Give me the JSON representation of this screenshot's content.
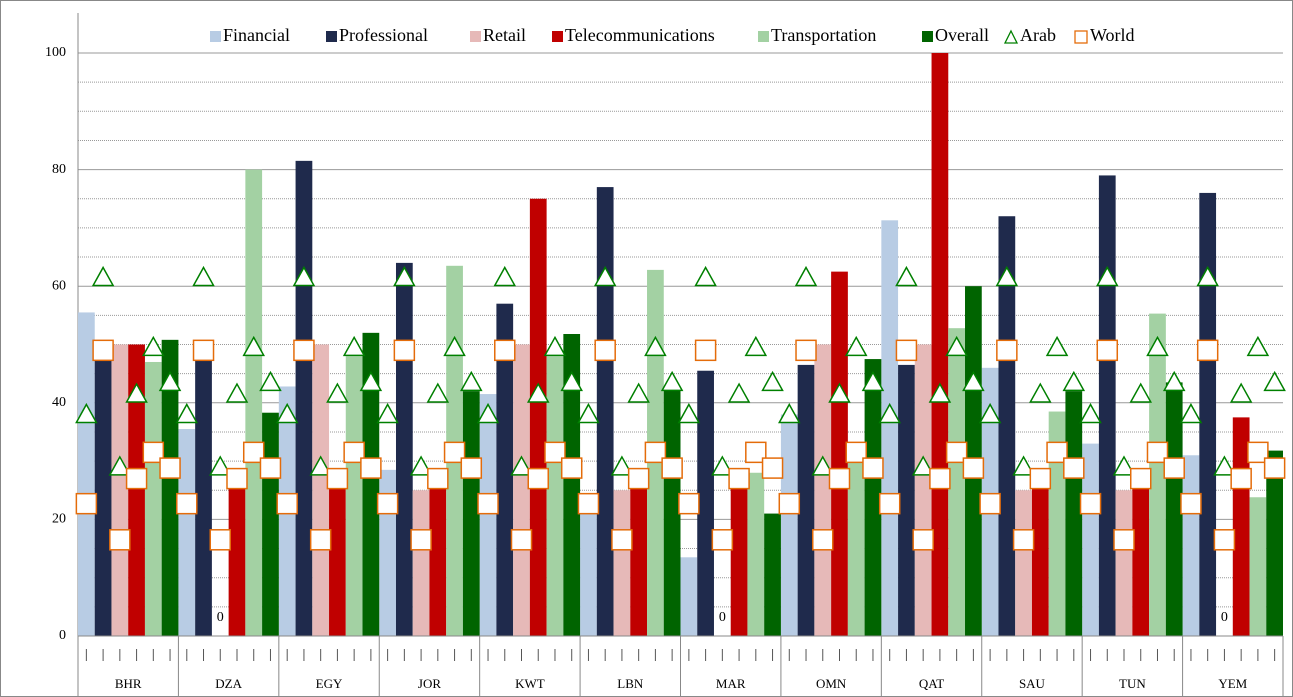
{
  "chart_data": {
    "type": "grouped-bar-marker",
    "categories": [
      "BHR",
      "DZA",
      "EGY",
      "JOR",
      "KWT",
      "LBN",
      "MAR",
      "OMN",
      "QAT",
      "SAU",
      "TUN",
      "YEM"
    ],
    "series": [
      {
        "name": "Financial",
        "color": "#b8cce4",
        "values": [
          55.5,
          35.5,
          42.8,
          28.5,
          41.5,
          22.5,
          13.5,
          38,
          71.3,
          46,
          33,
          31
        ]
      },
      {
        "name": "Professional",
        "color": "#1f2a4c",
        "values": [
          48,
          47.5,
          81.5,
          64,
          57,
          77,
          45.5,
          46.5,
          46.5,
          72,
          79,
          76
        ]
      },
      {
        "name": "Retail",
        "color": "#e6b9b8",
        "values": [
          50,
          0,
          50,
          25,
          50,
          25,
          0,
          50,
          50,
          25,
          25,
          0
        ]
      },
      {
        "name": "Telecommunications",
        "color": "#c00000",
        "values": [
          50,
          27,
          27,
          27,
          75,
          27,
          27,
          62.5,
          100,
          27,
          27,
          37.5
        ]
      },
      {
        "name": "Transportation",
        "color": "#a3d1a3",
        "values": [
          47,
          80,
          48,
          63.5,
          48,
          62.8,
          28,
          30,
          52.8,
          38.5,
          55.3,
          23.8
        ]
      },
      {
        "name": "Overall",
        "color": "#006400",
        "values": [
          50.8,
          38.3,
          52,
          42,
          51.8,
          42.5,
          21,
          47.5,
          60,
          42,
          43.5,
          31.8
        ]
      }
    ],
    "markers": [
      {
        "name": "Arab",
        "color": "#008000",
        "shape": "triangle",
        "values": [
          [
            38,
            61.5,
            29,
            41.5,
            49.5,
            43.5
          ],
          [
            38,
            61.5,
            29,
            41.5,
            49.5,
            43.5
          ],
          [
            38,
            61.5,
            29,
            41.5,
            49.5,
            43.5
          ],
          [
            38,
            61.5,
            29,
            41.5,
            49.5,
            43.5
          ],
          [
            38,
            61.5,
            29,
            41.5,
            49.5,
            43.5
          ],
          [
            38,
            61.5,
            29,
            41.5,
            49.5,
            43.5
          ],
          [
            38,
            61.5,
            29,
            41.5,
            49.5,
            43.5
          ],
          [
            38,
            61.5,
            29,
            41.5,
            49.5,
            43.5
          ],
          [
            38,
            61.5,
            29,
            41.5,
            49.5,
            43.5
          ],
          [
            38,
            61.5,
            29,
            41.5,
            49.5,
            43.5
          ],
          [
            38,
            61.5,
            29,
            41.5,
            49.5,
            43.5
          ],
          [
            38,
            61.5,
            29,
            41.5,
            49.5,
            43.5
          ]
        ]
      },
      {
        "name": "World",
        "color": "#e46c0a",
        "shape": "square",
        "values": [
          [
            22.7,
            49,
            16.5,
            27,
            31.5,
            28.8
          ],
          [
            22.7,
            49,
            16.5,
            27,
            31.5,
            28.8
          ],
          [
            22.7,
            49,
            16.5,
            27,
            31.5,
            28.8
          ],
          [
            22.7,
            49,
            16.5,
            27,
            31.5,
            28.8
          ],
          [
            22.7,
            49,
            16.5,
            27,
            31.5,
            28.8
          ],
          [
            22.7,
            49,
            16.5,
            27,
            31.5,
            28.8
          ],
          [
            22.7,
            49,
            16.5,
            27,
            31.5,
            28.8
          ],
          [
            22.7,
            49,
            16.5,
            27,
            31.5,
            28.8
          ],
          [
            22.7,
            49,
            16.5,
            27,
            31.5,
            28.8
          ],
          [
            22.7,
            49,
            16.5,
            27,
            31.5,
            28.8
          ],
          [
            22.7,
            49,
            16.5,
            27,
            31.5,
            28.8
          ],
          [
            22.7,
            49,
            16.5,
            27,
            31.5,
            28.8
          ]
        ]
      }
    ],
    "ylim": [
      0,
      100
    ],
    "yticks": [
      0,
      20,
      40,
      60,
      80,
      100
    ],
    "grid_ticks": [
      5,
      10,
      15,
      25,
      30,
      35,
      45,
      50,
      55,
      65,
      70,
      75,
      85,
      90,
      95
    ],
    "grid": true,
    "legend": "top"
  }
}
